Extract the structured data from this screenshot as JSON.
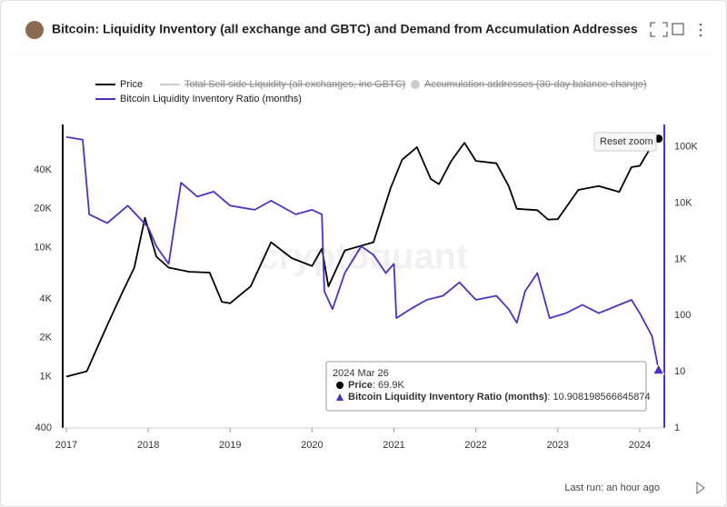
{
  "title": "Bitcoin: Liquidity Inventory (all exchange and GBTC) and Demand from Accumulation Addresses",
  "watermark": "cryptoquant",
  "reset_zoom": "Reset zoom",
  "footer": "Last run: an hour ago",
  "tooltip": {
    "date": "2024 Mar 26",
    "price_label": "69.9K"
  },
  "chart_data": {
    "type": "line",
    "log_scale": true,
    "grid": false,
    "xlim": [
      2016.956,
      2024.3
    ],
    "xticks": [
      2017,
      2018,
      2019,
      2020,
      2021,
      2022,
      2023,
      2024
    ],
    "ylim": [
      400,
      90000
    ],
    "yticks": [
      400,
      {
        "value": 1000,
        "label": "1K"
      },
      {
        "value": 2000,
        "label": "2K"
      },
      {
        "value": 4000,
        "label": "4K"
      },
      {
        "value": 10000,
        "label": "10K"
      },
      {
        "value": 20000,
        "label": "20K"
      },
      {
        "value": 40000,
        "label": "40K"
      }
    ],
    "y2lim": [
      1,
      250000
    ],
    "y2ticks": [
      1,
      10,
      100,
      {
        "value": 1000,
        "label": "1K"
      },
      {
        "value": 10000,
        "label": "10K"
      },
      {
        "value": 100000,
        "label": "100K"
      }
    ],
    "series": [
      {
        "name": "Price",
        "color": "#000000",
        "x": [
          2017.0,
          2017.25,
          2017.5,
          2017.67,
          2017.83,
          2017.96,
          2018.1,
          2018.25,
          2018.5,
          2018.75,
          2018.9,
          2019.0,
          2019.25,
          2019.5,
          2019.75,
          2020.0,
          2020.12,
          2020.2,
          2020.4,
          2020.75,
          2020.96,
          2021.1,
          2021.28,
          2021.45,
          2021.55,
          2021.7,
          2021.86,
          2022.0,
          2022.25,
          2022.4,
          2022.5,
          2022.75,
          2022.88,
          2023.0,
          2023.25,
          2023.5,
          2023.75,
          2023.9,
          2024.0,
          2024.15,
          2024.23
        ],
        "values": [
          1000,
          1100,
          2500,
          4300,
          7000,
          17000,
          8500,
          7000,
          6500,
          6400,
          3800,
          3700,
          5000,
          11000,
          8300,
          7200,
          9800,
          5000,
          9500,
          11000,
          29000,
          48000,
          60000,
          34000,
          31000,
          47000,
          65000,
          47000,
          45000,
          30000,
          20000,
          19500,
          16500,
          16600,
          28000,
          30000,
          27000,
          42000,
          43000,
          62000,
          69900
        ]
      },
      {
        "name": "Total Sell-side Liquidity (all exchanges, inc GBTC)",
        "color": "#cccccc",
        "hidden": true
      },
      {
        "name": "Accumulation addresses (30-day balance change)",
        "color": "#cccccc",
        "hidden": true
      },
      {
        "name": "Bitcoin Liquidity Inventory Ratio (months)",
        "color": "#4b32c3",
        "axis": "y2",
        "x": [
          2017.0,
          2017.2,
          2017.28,
          2017.5,
          2017.75,
          2018.0,
          2018.1,
          2018.25,
          2018.4,
          2018.6,
          2018.8,
          2019.0,
          2019.3,
          2019.5,
          2019.8,
          2020.0,
          2020.12,
          2020.15,
          2020.25,
          2020.4,
          2020.6,
          2020.75,
          2020.9,
          2021.0,
          2021.03,
          2021.2,
          2021.4,
          2021.6,
          2021.8,
          2022.0,
          2022.25,
          2022.4,
          2022.5,
          2022.6,
          2022.75,
          2022.9,
          2023.1,
          2023.3,
          2023.5,
          2023.75,
          2023.9,
          2024.0,
          2024.15,
          2024.23
        ],
        "values": [
          150000,
          134000,
          6300,
          4400,
          9000,
          3700,
          1700,
          830,
          23000,
          13000,
          16000,
          9000,
          7600,
          11000,
          6300,
          7600,
          6300,
          270,
          130,
          570,
          1700,
          1200,
          570,
          830,
          90,
          130,
          190,
          225,
          390,
          190,
          225,
          130,
          74,
          270,
          570,
          90,
          110,
          155,
          110,
          155,
          190,
          110,
          43,
          10.908198566645874
        ]
      }
    ]
  }
}
